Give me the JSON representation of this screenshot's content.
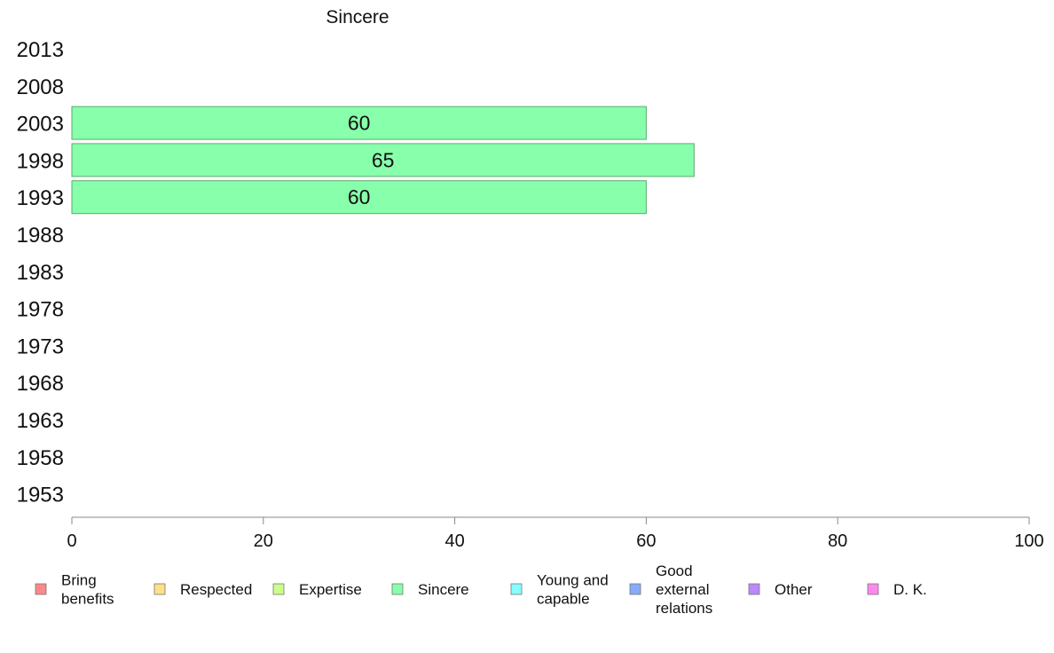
{
  "chart_data": {
    "type": "bar",
    "orientation": "horizontal",
    "title": "Sincere",
    "categories": [
      "2013",
      "2008",
      "2003",
      "1998",
      "1993",
      "1988",
      "1983",
      "1978",
      "1973",
      "1968",
      "1963",
      "1958",
      "1953"
    ],
    "series": [
      {
        "name": "Sincere",
        "color": "#88ffaa",
        "values": [
          null,
          null,
          60,
          65,
          60,
          null,
          null,
          null,
          null,
          null,
          null,
          null,
          null
        ],
        "labels": [
          "",
          "",
          "60",
          "65",
          "60",
          "",
          "",
          "",
          "",
          "",
          "",
          "",
          ""
        ]
      }
    ],
    "xlim": [
      0,
      100
    ],
    "xticks": [
      "0",
      "20",
      "40",
      "60",
      "80",
      "100"
    ],
    "grid": false,
    "legend": {
      "placement": "bottom",
      "entries": [
        {
          "label": [
            "Bring",
            "benefits"
          ],
          "color": "#ff8888"
        },
        {
          "label": [
            "Respected"
          ],
          "color": "#ffe088"
        },
        {
          "label": [
            "Expertise"
          ],
          "color": "#ccff88"
        },
        {
          "label": [
            "Sincere"
          ],
          "color": "#88ffaa"
        },
        {
          "label": [
            "Young and",
            "capable"
          ],
          "color": "#88ffff"
        },
        {
          "label": [
            "Good",
            "external",
            "relations"
          ],
          "color": "#88aaff"
        },
        {
          "label": [
            "Other"
          ],
          "color": "#bb88ff"
        },
        {
          "label": [
            "D. K."
          ],
          "color": "#ff88ee"
        }
      ]
    }
  }
}
